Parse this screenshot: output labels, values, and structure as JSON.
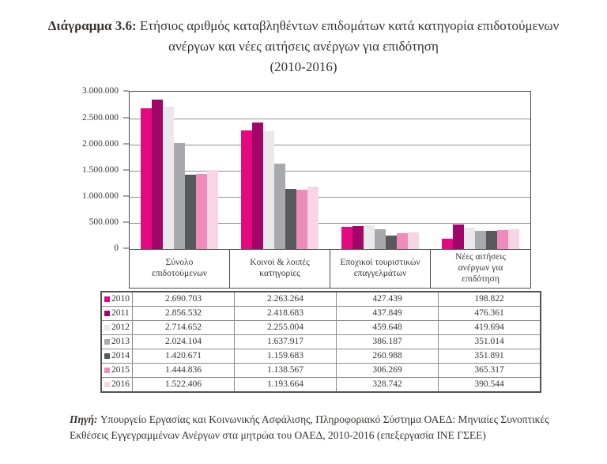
{
  "title": {
    "label": "Διάγραμμα 3.6:",
    "text": "Ετήσιος αριθμός καταβληθέντων επιδομάτων κατά κατηγορία επιδοτούμενων ανέργων και νέες αιτήσεις ανέργων για επιδότηση",
    "period": "(2010-2016)"
  },
  "chart_data": {
    "type": "bar",
    "title": "Ετήσιος αριθμός καταβληθέντων επιδομάτων κατά κατηγορία επιδοτούμενων ανέργων και νέες αιτήσεις ανέργων για επιδότηση (2010-2016)",
    "categories": [
      "Σύνολο επιδοτούμενων",
      "Κοινοί & λοιπές κατηγορίες",
      "Εποχικοί τουριστικών επαγγελμάτων",
      "Νέες αιτήσεις ανέργων για επιδότηση"
    ],
    "series": [
      {
        "name": "2010",
        "color": "#e5087e",
        "values": [
          2690703,
          2263264,
          427439,
          198822
        ]
      },
      {
        "name": "2011",
        "color": "#a30669",
        "values": [
          2856532,
          2418683,
          437849,
          476361
        ]
      },
      {
        "name": "2012",
        "color": "#e9e9eb",
        "values": [
          2714652,
          2255004,
          459648,
          419694
        ]
      },
      {
        "name": "2013",
        "color": "#a7a9ac",
        "values": [
          2024104,
          1637917,
          386187,
          351014
        ]
      },
      {
        "name": "2014",
        "color": "#58595c",
        "values": [
          1420671,
          1159683,
          260988,
          351891
        ]
      },
      {
        "name": "2015",
        "color": "#ef8bba",
        "values": [
          1444836,
          1138567,
          306269,
          365317
        ]
      },
      {
        "name": "2016",
        "color": "#f8d5e4",
        "values": [
          1522406,
          1193664,
          328742,
          390544
        ]
      }
    ],
    "ylim": [
      0,
      3000000
    ],
    "yticks": [
      "3.000.000",
      "2.500.000",
      "2.000.000",
      "1.500.000",
      "1.000.000",
      "500.000",
      "0"
    ],
    "grid": true,
    "legend_position": "table-left",
    "xlabel": "",
    "ylabel": ""
  },
  "source": {
    "label": "Πηγή:",
    "text": "Υπουργείο Εργασίας και Κοινωνικής Ασφάλισης, Πληροφοριακό Σύστημα ΟΑΕΔ: Μηνιαίες Συνοπτικές Εκθέσεις Εγγεγραμμένων Ανέργων στα μητρώα του ΟΑΕΔ, 2010-2016 (επεξεργασία ΙΝΕ ΓΣΕΕ)"
  }
}
